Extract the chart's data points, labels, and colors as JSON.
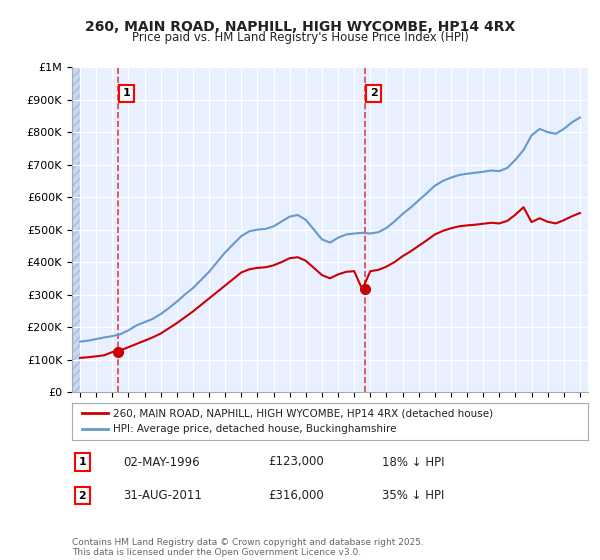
{
  "title": "260, MAIN ROAD, NAPHILL, HIGH WYCOMBE, HP14 4RX",
  "subtitle": "Price paid vs. HM Land Registry's House Price Index (HPI)",
  "legend_label_red": "260, MAIN ROAD, NAPHILL, HIGH WYCOMBE, HP14 4RX (detached house)",
  "legend_label_blue": "HPI: Average price, detached house, Buckinghamshire",
  "annotation1_label": "1",
  "annotation1_date": "02-MAY-1996",
  "annotation1_price": "£123,000",
  "annotation1_hpi": "18% ↓ HPI",
  "annotation1_year": 1996.33,
  "annotation1_value": 123000,
  "annotation2_label": "2",
  "annotation2_date": "31-AUG-2011",
  "annotation2_price": "£316,000",
  "annotation2_hpi": "35% ↓ HPI",
  "annotation2_year": 2011.67,
  "annotation2_value": 316000,
  "footer": "Contains HM Land Registry data © Crown copyright and database right 2025.\nThis data is licensed under the Open Government Licence v3.0.",
  "ylim": [
    0,
    1000000
  ],
  "yticks": [
    0,
    100000,
    200000,
    300000,
    400000,
    500000,
    600000,
    700000,
    800000,
    900000,
    1000000
  ],
  "xlim_start": 1993.5,
  "xlim_end": 2025.5,
  "bg_color": "#ffffff",
  "plot_bg_color": "#e8f0ff",
  "hatch_color": "#c8d8f0",
  "grid_color": "#ffffff",
  "red_line_color": "#cc0000",
  "blue_line_color": "#6699cc",
  "marker_color": "#cc0000",
  "vline_color": "#dd4444",
  "hpi_years": [
    1994,
    1994.5,
    1995,
    1995.5,
    1996,
    1996.5,
    1997,
    1997.5,
    1998,
    1998.5,
    1999,
    1999.5,
    2000,
    2000.5,
    2001,
    2001.5,
    2002,
    2002.5,
    2003,
    2003.5,
    2004,
    2004.5,
    2005,
    2005.5,
    2006,
    2006.5,
    2007,
    2007.5,
    2008,
    2008.5,
    2009,
    2009.5,
    2010,
    2010.5,
    2011,
    2011.5,
    2012,
    2012.5,
    2013,
    2013.5,
    2014,
    2014.5,
    2015,
    2015.5,
    2016,
    2016.5,
    2017,
    2017.5,
    2018,
    2018.5,
    2019,
    2019.5,
    2020,
    2020.5,
    2021,
    2021.5,
    2022,
    2022.5,
    2023,
    2023.5,
    2024,
    2024.5,
    2025
  ],
  "hpi_values": [
    155000,
    158000,
    163000,
    168000,
    172000,
    178000,
    190000,
    205000,
    215000,
    225000,
    240000,
    258000,
    278000,
    300000,
    320000,
    345000,
    370000,
    400000,
    430000,
    455000,
    480000,
    495000,
    500000,
    502000,
    510000,
    525000,
    540000,
    545000,
    530000,
    500000,
    470000,
    460000,
    475000,
    485000,
    488000,
    490000,
    488000,
    492000,
    505000,
    525000,
    548000,
    568000,
    590000,
    612000,
    635000,
    650000,
    660000,
    668000,
    672000,
    675000,
    678000,
    682000,
    680000,
    690000,
    715000,
    745000,
    790000,
    810000,
    800000,
    795000,
    810000,
    830000,
    845000
  ],
  "red_years": [
    1994,
    1994.5,
    1995,
    1995.5,
    1996,
    1996.5,
    1997,
    1997.5,
    1998,
    1998.5,
    1999,
    1999.5,
    2000,
    2000.5,
    2001,
    2001.5,
    2002,
    2002.5,
    2003,
    2003.5,
    2004,
    2004.5,
    2005,
    2005.5,
    2006,
    2006.5,
    2007,
    2007.5,
    2008,
    2008.5,
    2009,
    2009.5,
    2010,
    2010.5,
    2011,
    2011.5,
    2012,
    2012.5,
    2013,
    2013.5,
    2014,
    2014.5,
    2015,
    2015.5,
    2016,
    2016.5,
    2017,
    2017.5,
    2018,
    2018.5,
    2019,
    2019.5,
    2020,
    2020.5,
    2021,
    2021.5,
    2022,
    2022.5,
    2023,
    2023.5,
    2024,
    2024.5,
    2025
  ],
  "red_values": [
    105000,
    107000,
    110000,
    113000,
    123000,
    128000,
    138000,
    148000,
    158000,
    168000,
    180000,
    196000,
    212000,
    230000,
    248000,
    268000,
    288000,
    308000,
    328000,
    348000,
    368000,
    378000,
    382000,
    384000,
    390000,
    400000,
    412000,
    415000,
    404000,
    382000,
    360000,
    350000,
    362000,
    370000,
    372000,
    316000,
    372000,
    376000,
    386000,
    400000,
    418000,
    433000,
    450000,
    467000,
    485000,
    496000,
    504000,
    510000,
    513000,
    515000,
    518000,
    521000,
    519000,
    527000,
    546000,
    569000,
    523000,
    535000,
    524000,
    519000,
    529000,
    541000,
    551000
  ]
}
